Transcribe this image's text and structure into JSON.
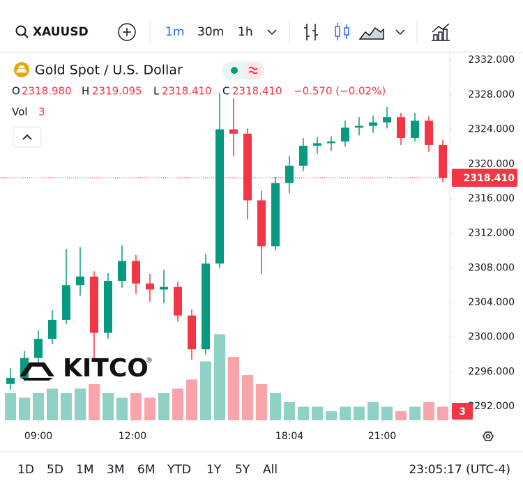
{
  "toolbar": {
    "symbol": "XAUUSD",
    "intervals": [
      "1m",
      "30m",
      "1h"
    ],
    "active_interval": "1m"
  },
  "legend": {
    "title": "Gold Spot / U.S. Dollar",
    "open_label": "O",
    "open": "2318.980",
    "high_label": "H",
    "high": "2319.095",
    "low_label": "L",
    "low": "2318.410",
    "close_label": "C",
    "close": "2318.410",
    "change": "−0.570 (−0.02%)",
    "volume_label": "Vol",
    "volume": "3"
  },
  "chart_data": {
    "type": "candlestick",
    "candles": [
      [
        2294.6,
        2296.4,
        2293.9,
        2295.3
      ],
      [
        2295.3,
        2298.4,
        2294.9,
        2297.6
      ],
      [
        2297.6,
        2300.8,
        2297.0,
        2299.8
      ],
      [
        2299.8,
        2303.1,
        2299.2,
        2302.0
      ],
      [
        2302.0,
        2310.2,
        2301.5,
        2306.0
      ],
      [
        2306.0,
        2310.4,
        2304.8,
        2307.0
      ],
      [
        2307.0,
        2307.6,
        2297.5,
        2300.5
      ],
      [
        2300.5,
        2307.4,
        2299.8,
        2306.5
      ],
      [
        2306.5,
        2310.6,
        2305.7,
        2308.8
      ],
      [
        2308.8,
        2309.5,
        2305.0,
        2306.2
      ],
      [
        2306.2,
        2307.3,
        2304.1,
        2305.5
      ],
      [
        2305.5,
        2307.8,
        2303.9,
        2305.8
      ],
      [
        2305.8,
        2306.4,
        2301.8,
        2302.5
      ],
      [
        2302.5,
        2303.2,
        2297.4,
        2298.6
      ],
      [
        2298.6,
        2309.6,
        2298.0,
        2308.5
      ],
      [
        2308.5,
        2328.2,
        2308.0,
        2324.0
      ],
      [
        2324.0,
        2327.6,
        2320.9,
        2323.5
      ],
      [
        2323.5,
        2324.1,
        2313.6,
        2315.8
      ],
      [
        2315.8,
        2316.9,
        2307.3,
        2310.5
      ],
      [
        2310.5,
        2318.5,
        2310.0,
        2317.8
      ],
      [
        2317.8,
        2320.9,
        2316.6,
        2319.8
      ],
      [
        2319.8,
        2323.0,
        2319.2,
        2322.1
      ],
      [
        2322.1,
        2323.1,
        2321.2,
        2322.4
      ],
      [
        2322.4,
        2323.2,
        2321.5,
        2322.6
      ],
      [
        2322.6,
        2325.0,
        2322.0,
        2324.2
      ],
      [
        2324.2,
        2325.4,
        2323.3,
        2324.4
      ],
      [
        2324.4,
        2325.6,
        2323.6,
        2324.8
      ],
      [
        2324.8,
        2326.6,
        2324.1,
        2325.4
      ],
      [
        2325.4,
        2325.9,
        2322.2,
        2323.0
      ],
      [
        2323.0,
        2325.9,
        2322.6,
        2325.0
      ],
      [
        2325.0,
        2325.5,
        2321.4,
        2322.2
      ],
      [
        2322.2,
        2322.8,
        2317.9,
        2318.41
      ]
    ],
    "volume": [
      6,
      5,
      6,
      7,
      6,
      7,
      8,
      6,
      5,
      6,
      5,
      6,
      7,
      9,
      13,
      19,
      14,
      10,
      8,
      6,
      4,
      3,
      3,
      2,
      3,
      3,
      4,
      3,
      2,
      3,
      4,
      3
    ],
    "up_color": "#089981",
    "down_color": "#f23645",
    "ylim": [
      2290.4,
      2332.9
    ],
    "yticks": [
      {
        "value": 2292,
        "label": "2292.000"
      },
      {
        "value": 2296,
        "label": "2296.000"
      },
      {
        "value": 2300,
        "label": "2300.000"
      },
      {
        "value": 2304,
        "label": "2304.000"
      },
      {
        "value": 2308,
        "label": "2308.000"
      },
      {
        "value": 2312,
        "label": "2312.000"
      },
      {
        "value": 2316,
        "label": "2316.000"
      },
      {
        "value": 2320,
        "label": "2320.000"
      },
      {
        "value": 2324,
        "label": "2324.000"
      },
      {
        "value": 2328,
        "label": "2328.000"
      },
      {
        "value": 2332,
        "label": "2332.000"
      }
    ],
    "xlim": [
      -0.5,
      31.5
    ],
    "xticks": [
      {
        "value": 2,
        "label": "09:00"
      },
      {
        "value": 8.75,
        "label": "12:00"
      },
      {
        "value": 20,
        "label": "18:04"
      },
      {
        "value": 26.65,
        "label": "21:00"
      }
    ],
    "last_price": {
      "value": 2318.41,
      "label": "2318.410"
    },
    "volume_badge": 3,
    "watermark": "KITCO"
  },
  "ranges": [
    "1D",
    "5D",
    "1M",
    "3M",
    "6M",
    "YTD",
    "1Y",
    "5Y",
    "All"
  ],
  "clock": "23:05:17 (UTC-4)"
}
